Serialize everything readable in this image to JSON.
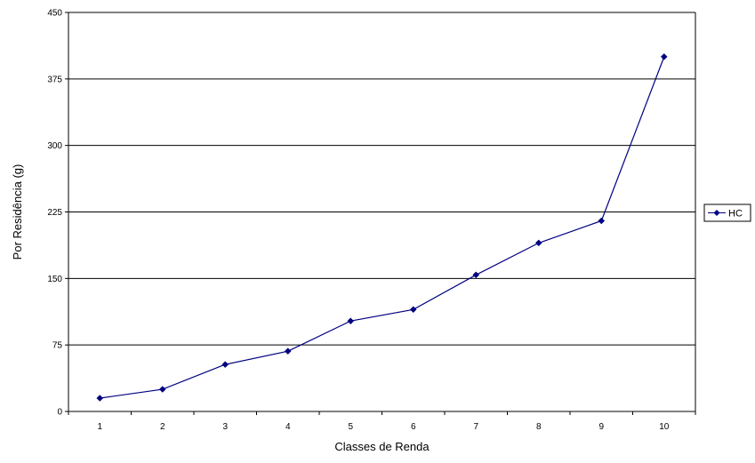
{
  "chart_data": {
    "type": "line",
    "title": "",
    "xlabel": "Classes de Renda",
    "ylabel": "Por Residência (g)",
    "categories": [
      "1",
      "2",
      "3",
      "4",
      "5",
      "6",
      "7",
      "8",
      "9",
      "10"
    ],
    "series": [
      {
        "name": "HC",
        "values": [
          15,
          25,
          53,
          68,
          102,
          115,
          154,
          190,
          215,
          400
        ],
        "color": "#000080",
        "marker": "diamond"
      }
    ],
    "ylim": [
      0,
      450
    ],
    "yticks": [
      "0",
      "75",
      "150",
      "225",
      "300",
      "375",
      "450"
    ],
    "grid": "horizontal",
    "legend_position": "right"
  }
}
